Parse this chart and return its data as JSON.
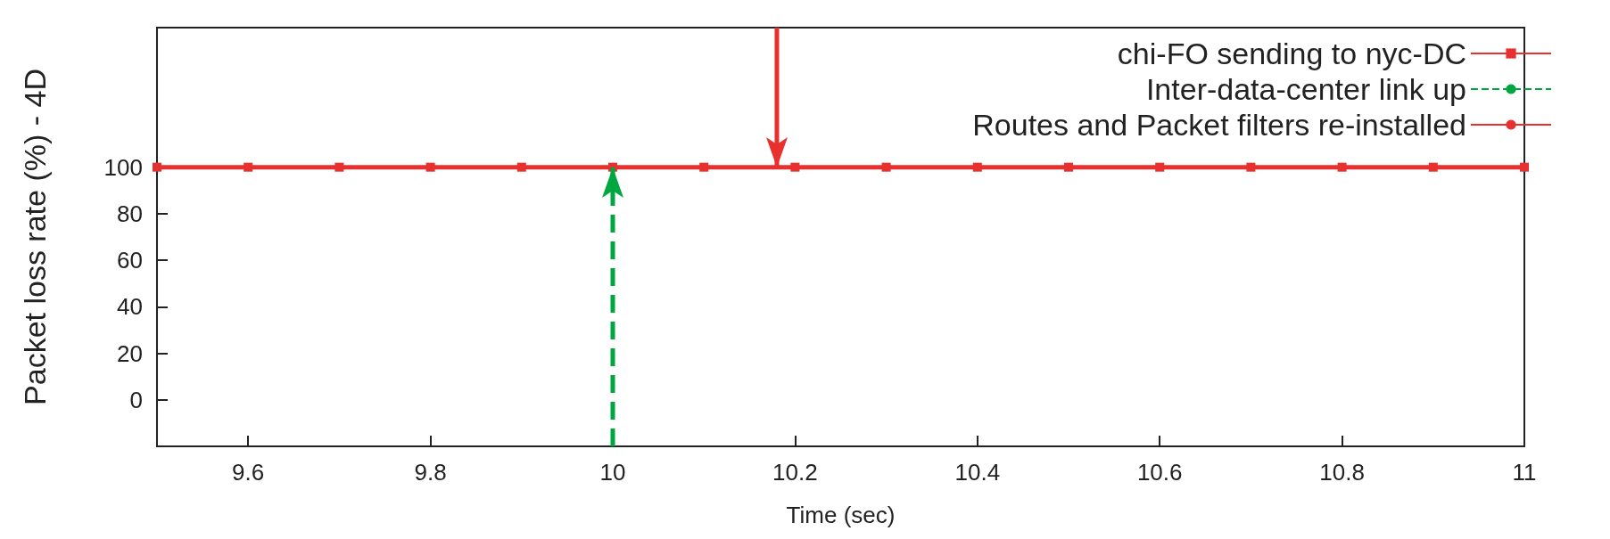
{
  "chart_data": {
    "type": "line",
    "xlabel": "Time (sec)",
    "ylabel": "Packet loss rate (%) - 4D",
    "xlim": [
      9.5,
      11
    ],
    "xticks": [
      9.6,
      9.8,
      10,
      10.2,
      10.4,
      10.6,
      10.8,
      11
    ],
    "ylim": [
      -20,
      160
    ],
    "yticks": [
      0,
      20,
      40,
      60,
      80,
      100
    ],
    "grid": false,
    "legend": "top right",
    "series": [
      {
        "name": "chi-FO sending to nyc-DC",
        "color": "#e8302e",
        "marker": "square",
        "line_style": "solid",
        "x": [
          9.5,
          9.6,
          9.7,
          9.8,
          9.9,
          10,
          10.1,
          10.2,
          10.3,
          10.4,
          10.5,
          10.6,
          10.7,
          10.8,
          10.9,
          11
        ],
        "values": [
          100,
          100,
          100,
          100,
          100,
          100,
          100,
          100,
          100,
          100,
          100,
          100,
          100,
          100,
          100,
          100
        ]
      },
      {
        "name": "Inter-data-center link up",
        "color": "#00a640",
        "marker": "none",
        "line_style": "dashed",
        "x": [
          10,
          10
        ],
        "values": [
          -20,
          100
        ]
      },
      {
        "name": "Routes and Packet filters re-installed",
        "color": "#e8302e",
        "marker": "none",
        "line_style": "solid",
        "x": [
          10.18,
          10.18
        ],
        "values": [
          160,
          100
        ]
      }
    ]
  }
}
